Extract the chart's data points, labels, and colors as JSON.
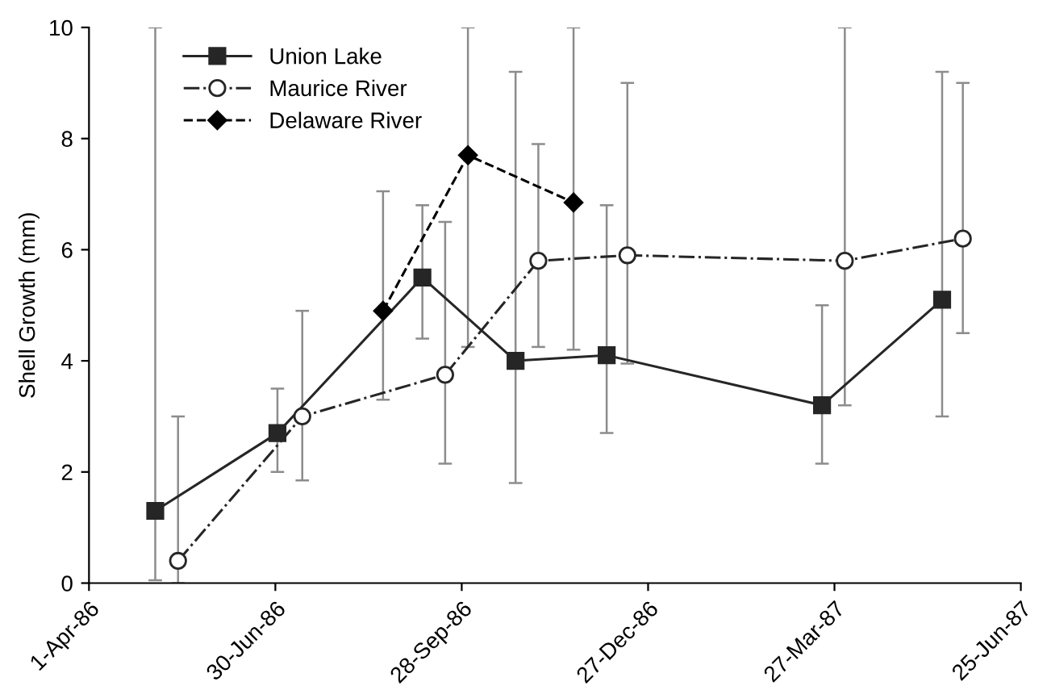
{
  "chart_data": {
    "type": "line",
    "ylabel": "Shell Growth (mm)",
    "ylim": [
      0,
      10
    ],
    "yticks": [
      0,
      2,
      4,
      6,
      8,
      10
    ],
    "xlim": [
      "1986-04-01",
      "1987-06-25"
    ],
    "xticks": [
      {
        "value": "1986-04-01",
        "label": "1-Apr-86"
      },
      {
        "value": "1986-06-30",
        "label": "30-Jun-86"
      },
      {
        "value": "1986-09-28",
        "label": "28-Sep-86"
      },
      {
        "value": "1986-12-27",
        "label": "27-Dec-86"
      },
      {
        "value": "1987-03-27",
        "label": "27-Mar-87"
      },
      {
        "value": "1987-06-25",
        "label": "25-Jun-87"
      }
    ],
    "grid": false,
    "legend": "top left",
    "series": [
      {
        "name": "Union Lake",
        "color": "#262626",
        "marker": "square",
        "line_style": "solid",
        "x": [
          "1986-05-03",
          "1986-07-01",
          "1986-09-09",
          "1986-10-24",
          "1986-12-07",
          "1987-03-21",
          "1987-05-18"
        ],
        "values": [
          1.3,
          2.7,
          5.5,
          4.0,
          4.1,
          3.2,
          5.1
        ],
        "errors": [
          [
            0.05,
            10
          ],
          [
            2.0,
            3.5
          ],
          [
            4.4,
            6.8
          ],
          [
            1.8,
            9.2
          ],
          [
            2.7,
            6.8
          ],
          [
            2.15,
            5.0
          ],
          [
            3.0,
            9.2
          ]
        ]
      },
      {
        "name": "Maurice River",
        "color": "#262626",
        "marker": "circle",
        "line_style": "dashdot",
        "x": [
          "1986-05-14",
          "1986-07-13",
          "1986-09-20",
          "1986-11-04",
          "1986-12-17",
          "1987-04-01",
          "1987-05-28"
        ],
        "values": [
          0.4,
          3.0,
          3.75,
          5.8,
          5.9,
          5.8,
          6.2
        ],
        "errors": [
          [
            0,
            3.0
          ],
          [
            1.85,
            4.9
          ],
          [
            2.15,
            6.5
          ],
          [
            4.25,
            7.9
          ],
          [
            3.95,
            9.0
          ],
          [
            3.2,
            10
          ],
          [
            4.5,
            9.0
          ]
        ]
      },
      {
        "name": "Delaware River",
        "color": "#000000",
        "marker": "diamond",
        "line_style": "dashed",
        "x": [
          "1986-08-21",
          "1986-10-01",
          "1986-11-21"
        ],
        "values": [
          4.9,
          7.7,
          6.85
        ],
        "errors": [
          [
            3.3,
            7.05
          ],
          [
            4.25,
            10
          ],
          [
            4.2,
            10
          ]
        ]
      }
    ]
  }
}
